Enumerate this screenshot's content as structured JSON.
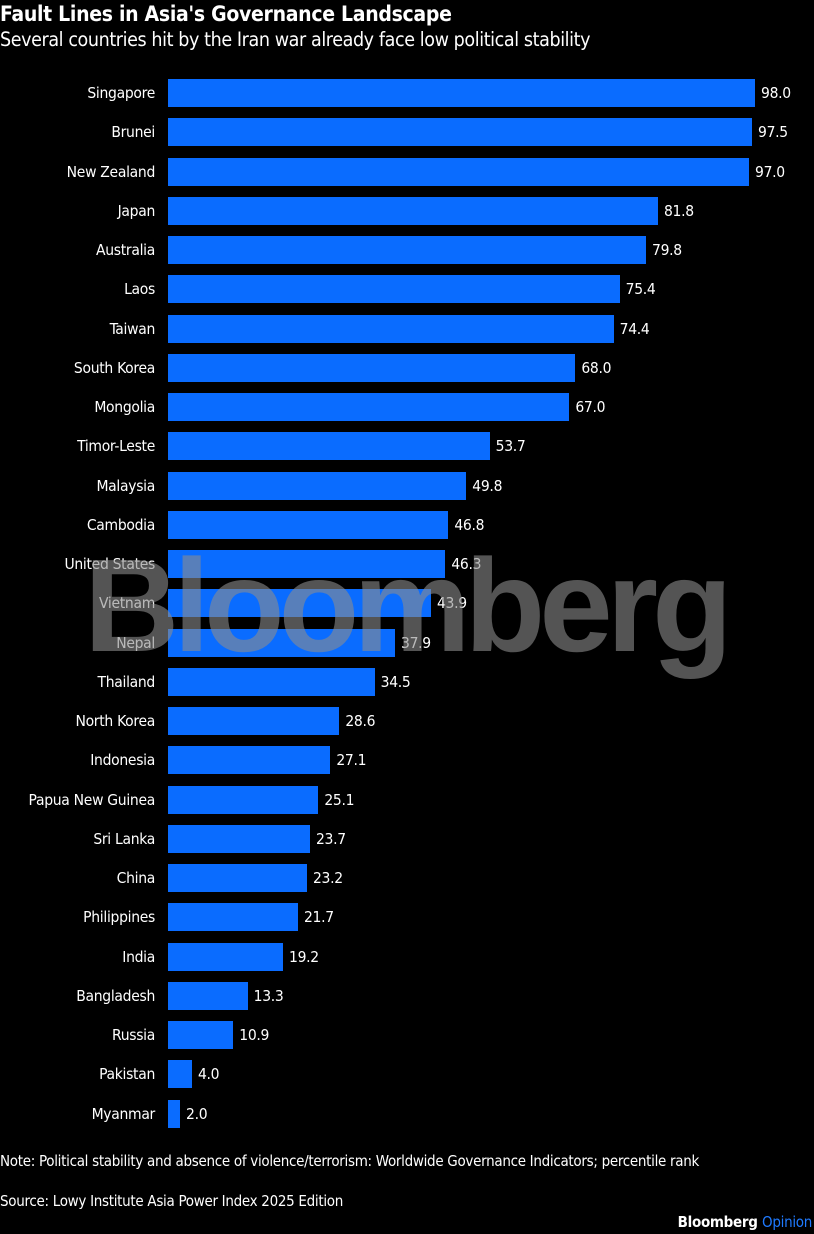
{
  "header": {
    "title": "Fault Lines in Asia's Governance Landscape",
    "subtitle": "Several countries hit by the Iran war already face low political stability"
  },
  "footer": {
    "note": "Note: Political stability and absence of violence/terrorism: Worldwide Governance Indicators; percentile rank",
    "source": "Source: Lowy Institute Asia Power Index 2025 Edition",
    "brand_name": "Bloomberg",
    "brand_section": "Opinion"
  },
  "watermark": "Bloomberg",
  "colors": {
    "bar": "#0a6cff",
    "background": "#000000",
    "text": "#ffffff",
    "brand_accent": "#1f7aff"
  },
  "chart_data": {
    "type": "bar",
    "orientation": "horizontal",
    "title": "Fault Lines in Asia's Governance Landscape",
    "subtitle": "Several countries hit by the Iran war already face low political stability",
    "xlabel": "",
    "ylabel": "",
    "xlim": [
      0,
      100
    ],
    "grid": false,
    "legend": null,
    "data_labels": true,
    "categories": [
      "Singapore",
      "Brunei",
      "New Zealand",
      "Japan",
      "Australia",
      "Laos",
      "Taiwan",
      "South Korea",
      "Mongolia",
      "Timor-Leste",
      "Malaysia",
      "Cambodia",
      "United States",
      "Vietnam",
      "Nepal",
      "Thailand",
      "North Korea",
      "Indonesia",
      "Papua New Guinea",
      "Sri Lanka",
      "China",
      "Philippines",
      "India",
      "Bangladesh",
      "Russia",
      "Pakistan",
      "Myanmar"
    ],
    "values": [
      98.0,
      97.5,
      97.0,
      81.8,
      79.8,
      75.4,
      74.4,
      68.0,
      67.0,
      53.7,
      49.8,
      46.8,
      46.3,
      43.9,
      37.9,
      34.5,
      28.6,
      27.1,
      25.1,
      23.7,
      23.2,
      21.7,
      19.2,
      13.3,
      10.9,
      4.0,
      2.0
    ],
    "value_labels": [
      "98.0",
      "97.5",
      "97.0",
      "81.8",
      "79.8",
      "75.4",
      "74.4",
      "68.0",
      "67.0",
      "53.7",
      "49.8",
      "46.8",
      "46.3",
      "43.9",
      "37.9",
      "34.5",
      "28.6",
      "27.1",
      "25.1",
      "23.7",
      "23.2",
      "21.7",
      "19.2",
      "13.3",
      "10.9",
      "4.0",
      "2.0"
    ]
  }
}
